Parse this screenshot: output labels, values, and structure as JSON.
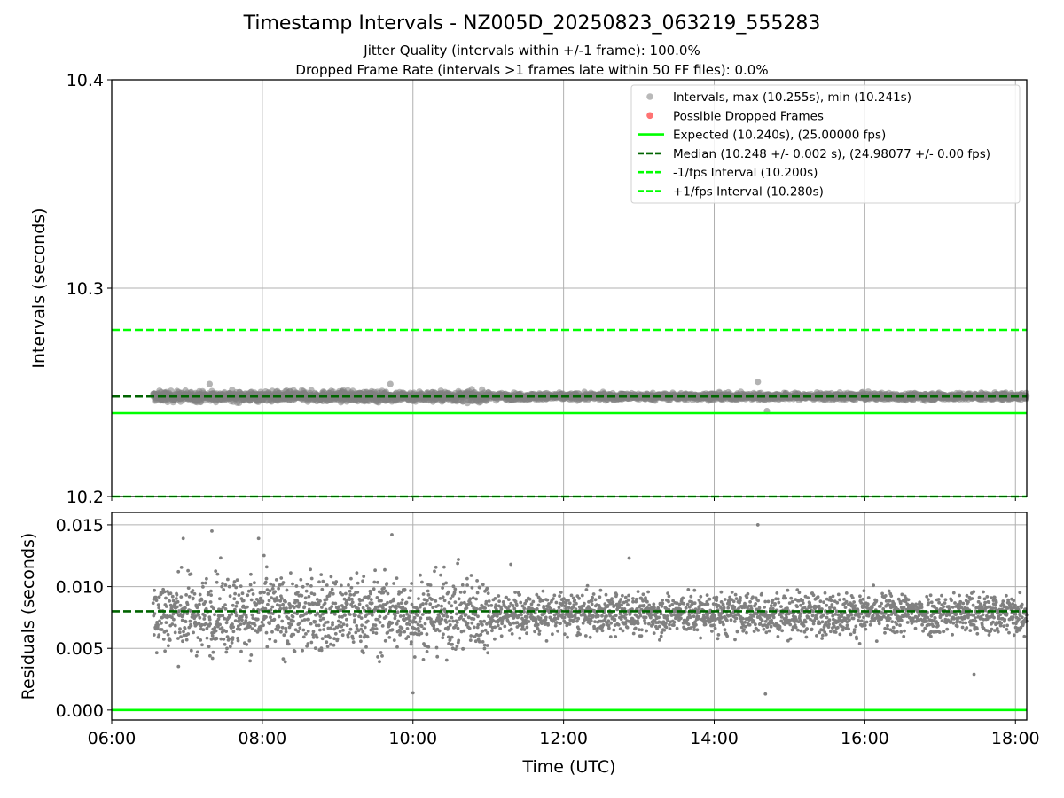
{
  "figure": {
    "title": "Timestamp Intervals - NZ005D_20250823_063219_555283",
    "subtitle_1": "Jitter Quality (intervals within +/-1 frame): 100.0%",
    "subtitle_2": "Dropped Frame Rate (intervals >1 frames late within 50 FF files): 0.0%",
    "xlabel": "Time (UTC)"
  },
  "colors": {
    "intervals": "#808080",
    "dropped": "#ff0000",
    "expected": "#00ff00",
    "median": "#006400",
    "fps_bounds": "#00ff00",
    "grid": "#b0b0b0"
  },
  "chart_data": [
    {
      "type": "scatter",
      "panel": "intervals",
      "ylabel": "Intervals (seconds)",
      "ylim": [
        10.2,
        10.4
      ],
      "yticks": [
        "10.2",
        "10.3",
        "10.4"
      ],
      "xlim_hours": [
        6.0,
        18.15
      ],
      "xticks": [
        "06:00",
        "08:00",
        "10:00",
        "12:00",
        "14:00",
        "16:00",
        "18:00"
      ],
      "grid": true,
      "legend_position": "top-right",
      "data_time_range_hours": [
        6.55,
        18.15
      ],
      "intervals_max": 10.255,
      "intervals_min": 10.241,
      "lines": [
        {
          "name": "Expected (10.240s), (25.00000 fps)",
          "y": 10.24,
          "style": "solid"
        },
        {
          "name": "Median (10.248 +/- 0.002 s), (24.98077 +/- 0.00 fps)",
          "y": 10.248,
          "style": "dashed"
        },
        {
          "name": "-1/fps Interval (10.200s)",
          "y": 10.2,
          "style": "dashed"
        },
        {
          "name": "+1/fps Interval (10.280s)",
          "y": 10.28,
          "style": "dashed"
        }
      ],
      "series": [
        {
          "name": "Intervals, max (10.255s), min (10.241s)",
          "center": 10.248,
          "spread": 0.002,
          "outliers": [
            [
              14.58,
              10.255
            ],
            [
              7.3,
              10.254
            ],
            [
              9.7,
              10.254
            ],
            [
              14.7,
              10.241
            ]
          ]
        },
        {
          "name": "Possible Dropped Frames",
          "count": 0
        }
      ]
    },
    {
      "type": "scatter",
      "panel": "residuals",
      "ylabel": "Residuals (seconds)",
      "ylim": [
        -0.0008,
        0.016
      ],
      "yticks": [
        "0.000",
        "0.005",
        "0.010",
        "0.015"
      ],
      "xlim_hours": [
        6.0,
        18.15
      ],
      "xticks": [
        "06:00",
        "08:00",
        "10:00",
        "12:00",
        "14:00",
        "16:00",
        "18:00"
      ],
      "grid": true,
      "lines": [
        {
          "y": 0.0,
          "style": "solid"
        },
        {
          "y": 0.008,
          "style": "dashed"
        }
      ],
      "residual_center": 0.0078,
      "residual_spread_early": 0.0022,
      "residual_spread_late": 0.0012,
      "outliers": [
        [
          14.58,
          0.015
        ],
        [
          7.33,
          0.0145
        ],
        [
          9.72,
          0.0142
        ],
        [
          6.95,
          0.0139
        ],
        [
          7.95,
          0.0139
        ],
        [
          14.68,
          0.0013
        ],
        [
          10.0,
          0.0014
        ],
        [
          11.3,
          0.0118
        ],
        [
          12.87,
          0.0123
        ],
        [
          17.45,
          0.0029
        ]
      ]
    }
  ]
}
